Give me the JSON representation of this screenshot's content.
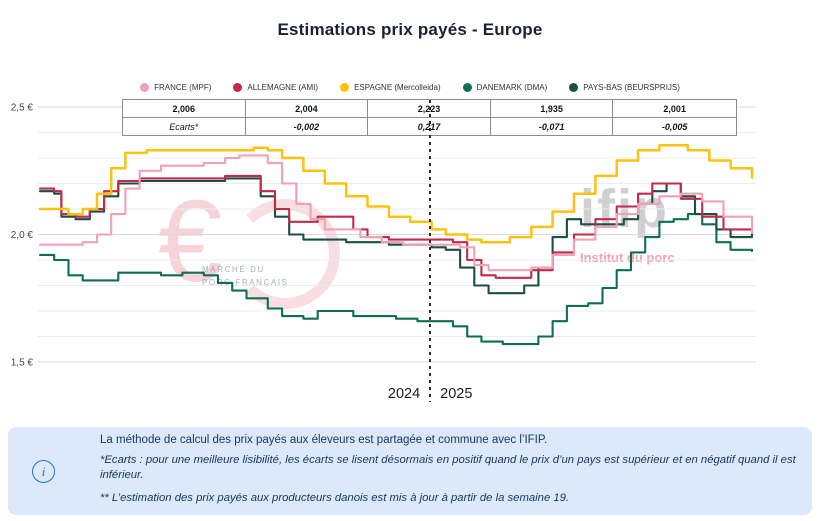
{
  "title": "Estimations prix payés - Europe",
  "chart_data": {
    "type": "line",
    "title": "Estimations prix payés - Europe",
    "ylim": [
      1.5,
      2.5
    ],
    "grid_step": 0.1,
    "yticks": [
      {
        "value": 2.5,
        "label": "2,5 €"
      },
      {
        "value": 2.0,
        "label": "2,0 €"
      },
      {
        "value": 1.5,
        "label": "1,5 €"
      }
    ],
    "divider_x": 0.548,
    "year_left": "2024",
    "year_right": "2025",
    "legend_position": "top",
    "series": [
      {
        "name": "FRANCE (MPF)",
        "color": "#f2a0b5",
        "last_value": 2.006,
        "points": [
          [
            0,
            1.96
          ],
          [
            0.03,
            1.96
          ],
          [
            0.06,
            1.97
          ],
          [
            0.08,
            2.0
          ],
          [
            0.1,
            2.08
          ],
          [
            0.12,
            2.18
          ],
          [
            0.14,
            2.25
          ],
          [
            0.17,
            2.27
          ],
          [
            0.2,
            2.27
          ],
          [
            0.23,
            2.28
          ],
          [
            0.26,
            2.3
          ],
          [
            0.28,
            2.31
          ],
          [
            0.3,
            2.31
          ],
          [
            0.32,
            2.28
          ],
          [
            0.34,
            2.2
          ],
          [
            0.36,
            2.12
          ],
          [
            0.38,
            2.06
          ],
          [
            0.4,
            2.02
          ],
          [
            0.43,
            2.02
          ],
          [
            0.45,
            1.99
          ],
          [
            0.48,
            1.97
          ],
          [
            0.51,
            1.96
          ],
          [
            0.54,
            1.96
          ],
          [
            0.57,
            1.96
          ],
          [
            0.59,
            1.95
          ],
          [
            0.61,
            1.88
          ],
          [
            0.63,
            1.86
          ],
          [
            0.66,
            1.86
          ],
          [
            0.69,
            1.87
          ],
          [
            0.72,
            1.92
          ],
          [
            0.75,
            1.98
          ],
          [
            0.78,
            2.03
          ],
          [
            0.81,
            2.08
          ],
          [
            0.84,
            2.12
          ],
          [
            0.87,
            2.15
          ],
          [
            0.9,
            2.16
          ],
          [
            0.93,
            2.13
          ],
          [
            0.96,
            2.07
          ],
          [
            1.0,
            2.006
          ]
        ]
      },
      {
        "name": "ALLEMAGNE (AMI)",
        "color": "#c2294b",
        "last_value": 2.004,
        "points": [
          [
            0,
            2.18
          ],
          [
            0.02,
            2.17
          ],
          [
            0.03,
            2.08
          ],
          [
            0.05,
            2.07
          ],
          [
            0.07,
            2.1
          ],
          [
            0.09,
            2.17
          ],
          [
            0.11,
            2.21
          ],
          [
            0.14,
            2.22
          ],
          [
            0.18,
            2.22
          ],
          [
            0.22,
            2.22
          ],
          [
            0.26,
            2.23
          ],
          [
            0.29,
            2.23
          ],
          [
            0.31,
            2.17
          ],
          [
            0.33,
            2.1
          ],
          [
            0.35,
            2.05
          ],
          [
            0.37,
            2.05
          ],
          [
            0.39,
            2.07
          ],
          [
            0.42,
            2.07
          ],
          [
            0.44,
            2.02
          ],
          [
            0.46,
            1.99
          ],
          [
            0.49,
            1.98
          ],
          [
            0.52,
            1.98
          ],
          [
            0.55,
            1.98
          ],
          [
            0.58,
            1.97
          ],
          [
            0.6,
            1.9
          ],
          [
            0.62,
            1.84
          ],
          [
            0.64,
            1.83
          ],
          [
            0.67,
            1.83
          ],
          [
            0.69,
            1.86
          ],
          [
            0.72,
            1.93
          ],
          [
            0.75,
            2.0
          ],
          [
            0.78,
            2.06
          ],
          [
            0.81,
            2.11
          ],
          [
            0.84,
            2.16
          ],
          [
            0.86,
            2.2
          ],
          [
            0.88,
            2.2
          ],
          [
            0.9,
            2.14
          ],
          [
            0.93,
            2.07
          ],
          [
            0.96,
            2.02
          ],
          [
            1.0,
            2.004
          ]
        ]
      },
      {
        "name": "ESPAGNE (Mercolleida)",
        "color": "#fdc20f",
        "last_value": 2.223,
        "points": [
          [
            0,
            2.1
          ],
          [
            0.02,
            2.1
          ],
          [
            0.04,
            2.08
          ],
          [
            0.06,
            2.1
          ],
          [
            0.08,
            2.16
          ],
          [
            0.1,
            2.26
          ],
          [
            0.12,
            2.32
          ],
          [
            0.15,
            2.33
          ],
          [
            0.19,
            2.33
          ],
          [
            0.23,
            2.33
          ],
          [
            0.27,
            2.33
          ],
          [
            0.3,
            2.34
          ],
          [
            0.32,
            2.33
          ],
          [
            0.34,
            2.3
          ],
          [
            0.37,
            2.25
          ],
          [
            0.4,
            2.2
          ],
          [
            0.43,
            2.15
          ],
          [
            0.46,
            2.11
          ],
          [
            0.49,
            2.07
          ],
          [
            0.52,
            2.05
          ],
          [
            0.55,
            2.02
          ],
          [
            0.57,
            2.0
          ],
          [
            0.6,
            1.98
          ],
          [
            0.62,
            1.97
          ],
          [
            0.64,
            1.97
          ],
          [
            0.66,
            1.99
          ],
          [
            0.69,
            2.03
          ],
          [
            0.72,
            2.09
          ],
          [
            0.75,
            2.16
          ],
          [
            0.78,
            2.23
          ],
          [
            0.81,
            2.29
          ],
          [
            0.84,
            2.33
          ],
          [
            0.87,
            2.35
          ],
          [
            0.89,
            2.35
          ],
          [
            0.91,
            2.33
          ],
          [
            0.94,
            2.29
          ],
          [
            0.97,
            2.26
          ],
          [
            1.0,
            2.223
          ]
        ]
      },
      {
        "name": "DANEMARK (DMA)",
        "color": "#0e6e52",
        "last_value": 1.935,
        "points": [
          [
            0,
            1.92
          ],
          [
            0.02,
            1.9
          ],
          [
            0.04,
            1.84
          ],
          [
            0.06,
            1.82
          ],
          [
            0.09,
            1.82
          ],
          [
            0.11,
            1.85
          ],
          [
            0.14,
            1.85
          ],
          [
            0.17,
            1.84
          ],
          [
            0.2,
            1.85
          ],
          [
            0.23,
            1.84
          ],
          [
            0.25,
            1.81
          ],
          [
            0.27,
            1.78
          ],
          [
            0.29,
            1.75
          ],
          [
            0.32,
            1.71
          ],
          [
            0.34,
            1.68
          ],
          [
            0.37,
            1.67
          ],
          [
            0.39,
            1.7
          ],
          [
            0.41,
            1.7
          ],
          [
            0.44,
            1.68
          ],
          [
            0.47,
            1.68
          ],
          [
            0.5,
            1.67
          ],
          [
            0.53,
            1.66
          ],
          [
            0.56,
            1.66
          ],
          [
            0.58,
            1.64
          ],
          [
            0.6,
            1.6
          ],
          [
            0.62,
            1.58
          ],
          [
            0.65,
            1.57
          ],
          [
            0.68,
            1.57
          ],
          [
            0.7,
            1.6
          ],
          [
            0.72,
            1.66
          ],
          [
            0.74,
            1.72
          ],
          [
            0.77,
            1.73
          ],
          [
            0.79,
            1.79
          ],
          [
            0.81,
            1.86
          ],
          [
            0.83,
            1.93
          ],
          [
            0.85,
            1.99
          ],
          [
            0.87,
            2.05
          ],
          [
            0.89,
            2.06
          ],
          [
            0.91,
            2.08
          ],
          [
            0.93,
            2.04
          ],
          [
            0.95,
            1.97
          ],
          [
            0.97,
            1.94
          ],
          [
            1.0,
            1.935
          ]
        ]
      },
      {
        "name": "PAYS-BAS (BEURSPRIJS)",
        "color": "#1b4f43",
        "last_value": 2.001,
        "points": [
          [
            0,
            2.17
          ],
          [
            0.02,
            2.16
          ],
          [
            0.03,
            2.07
          ],
          [
            0.05,
            2.06
          ],
          [
            0.07,
            2.09
          ],
          [
            0.09,
            2.15
          ],
          [
            0.11,
            2.2
          ],
          [
            0.14,
            2.21
          ],
          [
            0.18,
            2.21
          ],
          [
            0.22,
            2.21
          ],
          [
            0.26,
            2.22
          ],
          [
            0.29,
            2.22
          ],
          [
            0.31,
            2.15
          ],
          [
            0.33,
            2.07
          ],
          [
            0.35,
            2.0
          ],
          [
            0.37,
            1.98
          ],
          [
            0.4,
            1.98
          ],
          [
            0.43,
            1.97
          ],
          [
            0.46,
            1.97
          ],
          [
            0.49,
            1.96
          ],
          [
            0.52,
            1.96
          ],
          [
            0.55,
            1.95
          ],
          [
            0.57,
            1.94
          ],
          [
            0.59,
            1.87
          ],
          [
            0.61,
            1.8
          ],
          [
            0.63,
            1.77
          ],
          [
            0.66,
            1.77
          ],
          [
            0.68,
            1.8
          ],
          [
            0.7,
            1.87
          ],
          [
            0.72,
            1.99
          ],
          [
            0.74,
            2.06
          ],
          [
            0.76,
            2.04
          ],
          [
            0.79,
            2.04
          ],
          [
            0.82,
            2.06
          ],
          [
            0.84,
            2.12
          ],
          [
            0.86,
            2.17
          ],
          [
            0.88,
            2.2
          ],
          [
            0.9,
            2.15
          ],
          [
            0.92,
            2.08
          ],
          [
            0.95,
            2.02
          ],
          [
            0.97,
            1.99
          ],
          [
            1.0,
            2.001
          ]
        ]
      }
    ],
    "value_table": {
      "values": [
        "2,006",
        "2,004",
        "2,223",
        "1,935",
        "2,001"
      ],
      "ecarts_row": [
        "Ecarts*",
        "-0,002",
        "0,217",
        "-0,071",
        "-0,005"
      ]
    }
  },
  "watermarks": {
    "left": {
      "symbol": "€",
      "line1": "MARCHÉ DU",
      "line2": "PORC FRANÇAIS"
    },
    "right": {
      "logo": "ifip",
      "subtitle": "Institut du porc"
    }
  },
  "info_box": {
    "icon_label": "i",
    "line1": "La méthode de calcul des prix payés aux éleveurs est partagée et commune avec l’IFIP.",
    "line2": "*Ecarts : pour une meilleure lisibilité, les écarts se lisent désormais en positif quand le prix d’un pays est supérieur et en négatif quand il est inférieur.",
    "line3": "** L’estimation des prix payés aux producteurs danois est mis à jour à partir de la semaine 19."
  }
}
